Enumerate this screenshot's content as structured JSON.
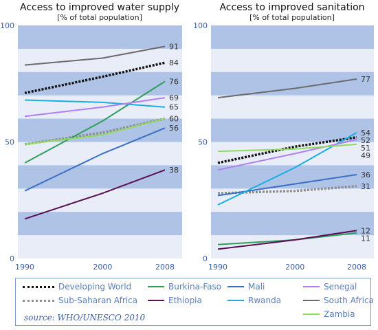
{
  "chart_data": [
    {
      "type": "line",
      "title": "Access to improved water supply",
      "subtitle": "[% of total population]",
      "x": [
        1990,
        2000,
        2008
      ],
      "xticks": [
        "1990",
        "2000",
        "2008"
      ],
      "ylim": [
        0,
        100
      ],
      "yticks": [
        "0",
        "50",
        "100"
      ],
      "series": [
        {
          "name": "Developing World",
          "values": [
            71,
            78,
            84
          ],
          "end_label": "84"
        },
        {
          "name": "Sub-Saharan Africa",
          "values": [
            49,
            54,
            60
          ],
          "end_label": "60"
        },
        {
          "name": "Burkina-Faso",
          "values": [
            41,
            59,
            76
          ],
          "end_label": "76"
        },
        {
          "name": "Ethiopia",
          "values": [
            17,
            28,
            38
          ],
          "end_label": "38"
        },
        {
          "name": "Mali",
          "values": [
            29,
            45,
            56
          ],
          "end_label": "56"
        },
        {
          "name": "Rwanda",
          "values": [
            68,
            67,
            65
          ],
          "end_label": "65"
        },
        {
          "name": "Senegal",
          "values": [
            61,
            65,
            69
          ],
          "end_label": "69"
        },
        {
          "name": "South Africa",
          "values": [
            83,
            86,
            91
          ],
          "end_label": "91"
        },
        {
          "name": "Zambia",
          "values": [
            49,
            53,
            60
          ],
          "end_label": ""
        }
      ]
    },
    {
      "type": "line",
      "title": "Access to improved sanitation",
      "subtitle": "[% of total population]",
      "x": [
        1990,
        2000,
        2008
      ],
      "xticks": [
        "1990",
        "2000",
        "2008"
      ],
      "ylim": [
        0,
        100
      ],
      "yticks": [
        "0",
        "50",
        "100"
      ],
      "series": [
        {
          "name": "Developing World",
          "values": [
            41,
            48,
            52
          ],
          "end_label": "52"
        },
        {
          "name": "Sub-Saharan Africa",
          "values": [
            28,
            29,
            31
          ],
          "end_label": "31"
        },
        {
          "name": "Burkina-Faso",
          "values": [
            6,
            8,
            11
          ],
          "end_label": "11"
        },
        {
          "name": "Ethiopia",
          "values": [
            4,
            8,
            12
          ],
          "end_label": "12"
        },
        {
          "name": "Mali",
          "values": [
            27,
            32,
            36
          ],
          "end_label": "36"
        },
        {
          "name": "Rwanda",
          "values": [
            23,
            39,
            54
          ],
          "end_label": "54"
        },
        {
          "name": "Senegal",
          "values": [
            38,
            45,
            51
          ],
          "end_label": "51"
        },
        {
          "name": "South Africa",
          "values": [
            69,
            73,
            77
          ],
          "end_label": "77"
        },
        {
          "name": "Zambia",
          "values": [
            46,
            47,
            49
          ],
          "end_label": "49"
        }
      ]
    }
  ],
  "styles": {
    "Developing World": {
      "color": "#111111",
      "dash": "dotted",
      "width": 3.5
    },
    "Sub-Saharan Africa": {
      "color": "#8f8f8f",
      "dash": "dotted",
      "width": 3.5
    },
    "Burkina-Faso": {
      "color": "#2e9e5b",
      "dash": "solid",
      "width": 2
    },
    "Ethiopia": {
      "color": "#5a0f50",
      "dash": "solid",
      "width": 2
    },
    "Mali": {
      "color": "#3b6fc4",
      "dash": "solid",
      "width": 2
    },
    "Rwanda": {
      "color": "#1aaee0",
      "dash": "solid",
      "width": 2
    },
    "Senegal": {
      "color": "#b07ef0",
      "dash": "solid",
      "width": 2
    },
    "South Africa": {
      "color": "#6a6a6a",
      "dash": "solid",
      "width": 2
    },
    "Zambia": {
      "color": "#8fdc5a",
      "dash": "solid",
      "width": 2
    }
  },
  "colors": {
    "band_dark": "#aec3e6",
    "band_light": "#e8edf7",
    "axis_text": "#3b5fa8"
  },
  "legend": {
    "items": [
      "Developing World",
      "Sub-Saharan Africa",
      "Burkina-Faso",
      "Ethiopia",
      "Mali",
      "Rwanda",
      "Senegal",
      "South Africa",
      "Zambia"
    ],
    "source": "source: WHO/UNESCO 2010"
  }
}
